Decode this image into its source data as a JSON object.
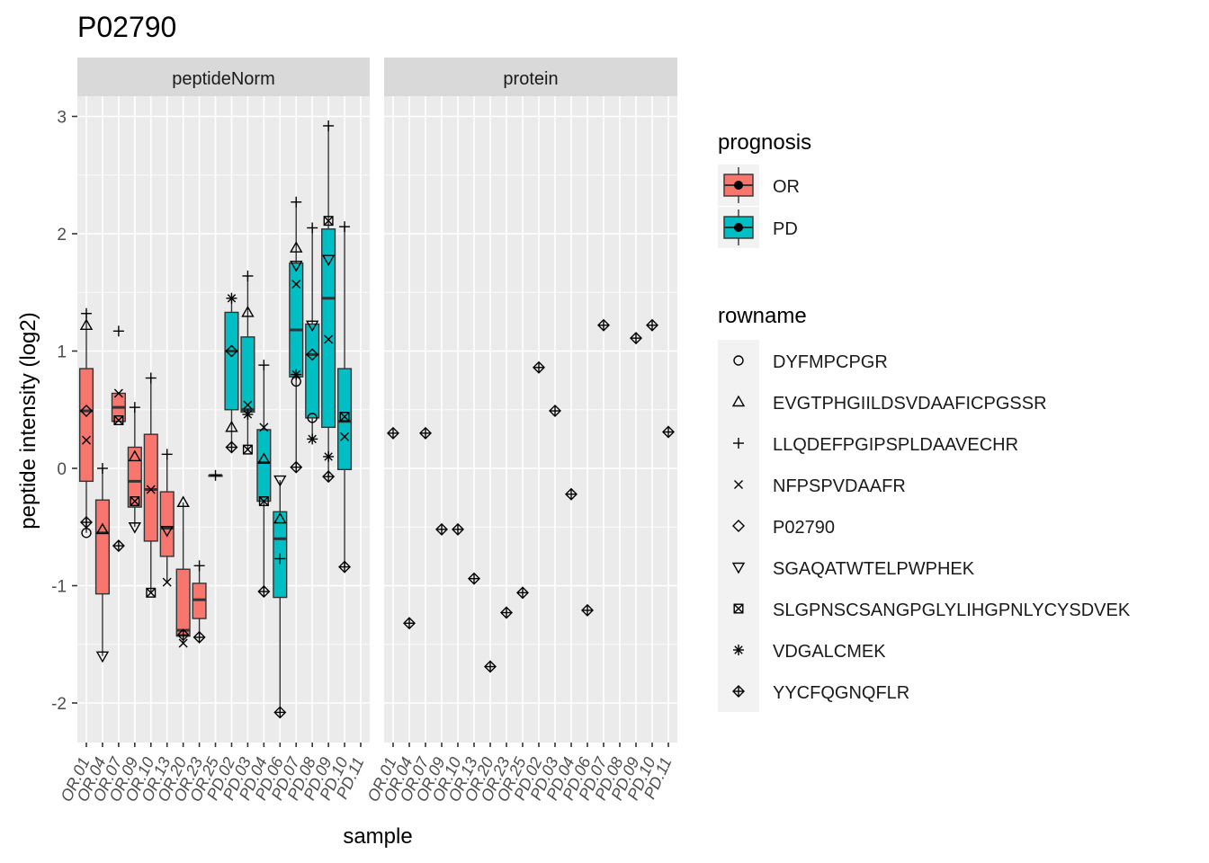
{
  "chart_data": {
    "type": "boxplot",
    "title": "P02790",
    "xlabel": "sample",
    "ylabel": "peptide intensity (log2)",
    "ylim": [
      -2.3,
      3.3
    ],
    "y_ticks": [
      -2,
      -1,
      0,
      1,
      2,
      3
    ],
    "y_tick_labels": [
      "-2",
      "-1",
      "0",
      "1",
      "2",
      "3"
    ],
    "grid": true,
    "samples": [
      "OR.01",
      "OR.04",
      "OR.07",
      "OR.09",
      "OR.10",
      "OR.13",
      "OR.20",
      "OR.23",
      "OR.25",
      "PD.02",
      "PD.03",
      "PD.04",
      "PD.06",
      "PD.07",
      "PD.08",
      "PD.09",
      "PD.10",
      "PD.11"
    ],
    "sample_group": [
      "OR",
      "OR",
      "OR",
      "OR",
      "OR",
      "OR",
      "OR",
      "OR",
      "OR",
      "PD",
      "PD",
      "PD",
      "PD",
      "PD",
      "PD",
      "PD",
      "PD",
      "PD"
    ],
    "panels": [
      {
        "name": "peptideNorm",
        "boxes": [
          {
            "sample": "OR.01",
            "q1": -0.11,
            "median": 0.49,
            "q3": 0.85,
            "whisker_low": -0.55,
            "whisker_high": 1.32
          },
          {
            "sample": "OR.04",
            "q1": -1.07,
            "median": -0.55,
            "q3": -0.27,
            "whisker_low": -1.6,
            "whisker_high": 0.0
          },
          {
            "sample": "OR.07",
            "q1": 0.4,
            "median": 0.52,
            "q3": 0.64,
            "whisker_low": 0.4,
            "whisker_high": 0.64
          },
          {
            "sample": "OR.09",
            "q1": -0.33,
            "median": -0.11,
            "q3": 0.18,
            "whisker_low": -0.5,
            "whisker_high": 0.52
          },
          {
            "sample": "OR.10",
            "q1": -0.62,
            "median": -0.18,
            "q3": 0.29,
            "whisker_low": -1.06,
            "whisker_high": 0.77
          },
          {
            "sample": "OR.13",
            "q1": -0.75,
            "median": -0.51,
            "q3": -0.2,
            "whisker_low": -0.97,
            "whisker_high": 0.12
          },
          {
            "sample": "OR.20",
            "q1": -1.43,
            "median": -1.38,
            "q3": -0.86,
            "whisker_low": -1.49,
            "whisker_high": -0.29
          },
          {
            "sample": "OR.23",
            "q1": -1.28,
            "median": -1.12,
            "q3": -0.98,
            "whisker_low": -1.44,
            "whisker_high": -0.83
          },
          {
            "sample": "OR.25",
            "q1": -0.06,
            "median": -0.06,
            "q3": -0.06,
            "whisker_low": -0.06,
            "whisker_high": -0.06
          },
          {
            "sample": "PD.02",
            "q1": 0.5,
            "median": 1.0,
            "q3": 1.33,
            "whisker_low": 0.18,
            "whisker_high": 1.45
          },
          {
            "sample": "PD.03",
            "q1": 0.48,
            "median": 0.5,
            "q3": 1.12,
            "whisker_low": 0.16,
            "whisker_high": 1.64
          },
          {
            "sample": "PD.04",
            "q1": -0.28,
            "median": 0.05,
            "q3": 0.33,
            "whisker_low": -1.05,
            "whisker_high": 0.88
          },
          {
            "sample": "PD.06",
            "q1": -1.1,
            "median": -0.6,
            "q3": -0.37,
            "whisker_low": -2.08,
            "whisker_high": -0.1
          },
          {
            "sample": "PD.07",
            "q1": 0.78,
            "median": 1.18,
            "q3": 1.75,
            "whisker_low": 0.01,
            "whisker_high": 2.27
          },
          {
            "sample": "PD.08",
            "q1": 0.43,
            "median": 0.97,
            "q3": 1.23,
            "whisker_low": 0.25,
            "whisker_high": 2.05
          },
          {
            "sample": "PD.09",
            "q1": 0.35,
            "median": 1.45,
            "q3": 2.04,
            "whisker_low": -0.07,
            "whisker_high": 2.92
          },
          {
            "sample": "PD.10",
            "q1": -0.01,
            "median": 0.4,
            "q3": 0.85,
            "whisker_low": -0.84,
            "whisker_high": 2.06
          }
        ],
        "points": [
          {
            "sample": "OR.01",
            "peptide": "DYFMPCPGR",
            "y": -0.55
          },
          {
            "sample": "OR.01",
            "peptide": "EVGTPHGIILDSVDAAFICPGSSR",
            "y": 1.22
          },
          {
            "sample": "OR.01",
            "peptide": "LLQDEFPGIPSPLDAAVECHR",
            "y": 1.32
          },
          {
            "sample": "OR.01",
            "peptide": "NFPSPVDAAFR",
            "y": 0.24
          },
          {
            "sample": "OR.01",
            "peptide": "P02790",
            "y": 0.49
          },
          {
            "sample": "OR.01",
            "peptide": "YYCFQGNQFLR",
            "y": -0.46
          },
          {
            "sample": "OR.04",
            "peptide": "EVGTPHGIILDSVDAAFICPGSSR",
            "y": -0.52
          },
          {
            "sample": "OR.04",
            "peptide": "LLQDEFPGIPSPLDAAVECHR",
            "y": 0.0
          },
          {
            "sample": "OR.04",
            "peptide": "SGAQATWTELPWPHEK",
            "y": -1.6
          },
          {
            "sample": "OR.07",
            "peptide": "LLQDEFPGIPSPLDAAVECHR",
            "y": 1.17
          },
          {
            "sample": "OR.07",
            "peptide": "NFPSPVDAAFR",
            "y": 0.64
          },
          {
            "sample": "OR.07",
            "peptide": "SLGPNSCSANGPGLYLIHGPNLYCYSDVEK",
            "y": 0.41
          },
          {
            "sample": "OR.07",
            "peptide": "YYCFQGNQFLR",
            "y": -0.66
          },
          {
            "sample": "OR.09",
            "peptide": "EVGTPHGIILDSVDAAFICPGSSR",
            "y": 0.1
          },
          {
            "sample": "OR.09",
            "peptide": "LLQDEFPGIPSPLDAAVECHR",
            "y": 0.52
          },
          {
            "sample": "OR.09",
            "peptide": "SGAQATWTELPWPHEK",
            "y": -0.5
          },
          {
            "sample": "OR.09",
            "peptide": "SLGPNSCSANGPGLYLIHGPNLYCYSDVEK",
            "y": -0.28
          },
          {
            "sample": "OR.10",
            "peptide": "LLQDEFPGIPSPLDAAVECHR",
            "y": 0.77
          },
          {
            "sample": "OR.10",
            "peptide": "NFPSPVDAAFR",
            "y": -0.18
          },
          {
            "sample": "OR.10",
            "peptide": "SLGPNSCSANGPGLYLIHGPNLYCYSDVEK",
            "y": -1.06
          },
          {
            "sample": "OR.13",
            "peptide": "LLQDEFPGIPSPLDAAVECHR",
            "y": 0.12
          },
          {
            "sample": "OR.13",
            "peptide": "NFPSPVDAAFR",
            "y": -0.97
          },
          {
            "sample": "OR.13",
            "peptide": "SGAQATWTELPWPHEK",
            "y": -0.53
          },
          {
            "sample": "OR.20",
            "peptide": "EVGTPHGIILDSVDAAFICPGSSR",
            "y": -0.29
          },
          {
            "sample": "OR.20",
            "peptide": "NFPSPVDAAFR",
            "y": -1.49
          },
          {
            "sample": "OR.20",
            "peptide": "YYCFQGNQFLR",
            "y": -1.42
          },
          {
            "sample": "OR.23",
            "peptide": "LLQDEFPGIPSPLDAAVECHR",
            "y": -0.83
          },
          {
            "sample": "OR.23",
            "peptide": "YYCFQGNQFLR",
            "y": -1.44
          },
          {
            "sample": "OR.25",
            "peptide": "LLQDEFPGIPSPLDAAVECHR",
            "y": -0.06
          },
          {
            "sample": "PD.02",
            "peptide": "EVGTPHGIILDSVDAAFICPGSSR",
            "y": 0.35
          },
          {
            "sample": "PD.02",
            "peptide": "VDGALCMEK",
            "y": 1.45
          },
          {
            "sample": "PD.02",
            "peptide": "P02790",
            "y": 1.0
          },
          {
            "sample": "PD.02",
            "peptide": "YYCFQGNQFLR",
            "y": 0.18
          },
          {
            "sample": "PD.03",
            "peptide": "EVGTPHGIILDSVDAAFICPGSSR",
            "y": 1.33
          },
          {
            "sample": "PD.03",
            "peptide": "LLQDEFPGIPSPLDAAVECHR",
            "y": 1.64
          },
          {
            "sample": "PD.03",
            "peptide": "NFPSPVDAAFR",
            "y": 0.54
          },
          {
            "sample": "PD.03",
            "peptide": "VDGALCMEK",
            "y": 0.46
          },
          {
            "sample": "PD.03",
            "peptide": "SLGPNSCSANGPGLYLIHGPNLYCYSDVEK",
            "y": 0.16
          },
          {
            "sample": "PD.04",
            "peptide": "LLQDEFPGIPSPLDAAVECHR",
            "y": 0.88
          },
          {
            "sample": "PD.04",
            "peptide": "NFPSPVDAAFR",
            "y": 0.35
          },
          {
            "sample": "PD.04",
            "peptide": "EVGTPHGIILDSVDAAFICPGSSR",
            "y": 0.08
          },
          {
            "sample": "PD.04",
            "peptide": "SLGPNSCSANGPGLYLIHGPNLYCYSDVEK",
            "y": -0.28
          },
          {
            "sample": "PD.04",
            "peptide": "YYCFQGNQFLR",
            "y": -1.05
          },
          {
            "sample": "PD.06",
            "peptide": "SGAQATWTELPWPHEK",
            "y": -0.1
          },
          {
            "sample": "PD.06",
            "peptide": "EVGTPHGIILDSVDAAFICPGSSR",
            "y": -0.43
          },
          {
            "sample": "PD.06",
            "peptide": "LLQDEFPGIPSPLDAAVECHR",
            "y": -0.77
          },
          {
            "sample": "PD.06",
            "peptide": "YYCFQGNQFLR",
            "y": -2.08
          },
          {
            "sample": "PD.07",
            "peptide": "LLQDEFPGIPSPLDAAVECHR",
            "y": 2.27
          },
          {
            "sample": "PD.07",
            "peptide": "EVGTPHGIILDSVDAAFICPGSSR",
            "y": 1.88
          },
          {
            "sample": "PD.07",
            "peptide": "SGAQATWTELPWPHEK",
            "y": 1.73
          },
          {
            "sample": "PD.07",
            "peptide": "NFPSPVDAAFR",
            "y": 1.57
          },
          {
            "sample": "PD.07",
            "peptide": "VDGALCMEK",
            "y": 0.8
          },
          {
            "sample": "PD.07",
            "peptide": "DYFMPCPGR",
            "y": 0.74
          },
          {
            "sample": "PD.07",
            "peptide": "YYCFQGNQFLR",
            "y": 0.01
          },
          {
            "sample": "PD.08",
            "peptide": "LLQDEFPGIPSPLDAAVECHR",
            "y": 2.05
          },
          {
            "sample": "PD.08",
            "peptide": "SGAQATWTELPWPHEK",
            "y": 1.22
          },
          {
            "sample": "PD.08",
            "peptide": "P02790",
            "y": 0.97
          },
          {
            "sample": "PD.08",
            "peptide": "DYFMPCPGR",
            "y": 0.43
          },
          {
            "sample": "PD.08",
            "peptide": "VDGALCMEK",
            "y": 0.25
          },
          {
            "sample": "PD.09",
            "peptide": "LLQDEFPGIPSPLDAAVECHR",
            "y": 2.92
          },
          {
            "sample": "PD.09",
            "peptide": "SLGPNSCSANGPGLYLIHGPNLYCYSDVEK",
            "y": 2.11
          },
          {
            "sample": "PD.09",
            "peptide": "SGAQATWTELPWPHEK",
            "y": 1.78
          },
          {
            "sample": "PD.09",
            "peptide": "NFPSPVDAAFR",
            "y": 1.1
          },
          {
            "sample": "PD.09",
            "peptide": "VDGALCMEK",
            "y": 0.1
          },
          {
            "sample": "PD.09",
            "peptide": "YYCFQGNQFLR",
            "y": -0.07
          },
          {
            "sample": "PD.10",
            "peptide": "LLQDEFPGIPSPLDAAVECHR",
            "y": 2.06
          },
          {
            "sample": "PD.10",
            "peptide": "SLGPNSCSANGPGLYLIHGPNLYCYSDVEK",
            "y": 0.44
          },
          {
            "sample": "PD.10",
            "peptide": "NFPSPVDAAFR",
            "y": 0.27
          },
          {
            "sample": "PD.10",
            "peptide": "YYCFQGNQFLR",
            "y": -0.84
          }
        ]
      },
      {
        "name": "protein",
        "boxes": [],
        "points": [
          {
            "sample": "OR.01",
            "peptide": "YYCFQGNQFLR",
            "y": 0.3
          },
          {
            "sample": "OR.04",
            "peptide": "YYCFQGNQFLR",
            "y": -1.32
          },
          {
            "sample": "OR.07",
            "peptide": "YYCFQGNQFLR",
            "y": 0.3
          },
          {
            "sample": "OR.09",
            "peptide": "YYCFQGNQFLR",
            "y": -0.52
          },
          {
            "sample": "OR.10",
            "peptide": "YYCFQGNQFLR",
            "y": -0.52
          },
          {
            "sample": "OR.13",
            "peptide": "YYCFQGNQFLR",
            "y": -0.94
          },
          {
            "sample": "OR.20",
            "peptide": "YYCFQGNQFLR",
            "y": -1.69
          },
          {
            "sample": "OR.23",
            "peptide": "YYCFQGNQFLR",
            "y": -1.23
          },
          {
            "sample": "OR.25",
            "peptide": "YYCFQGNQFLR",
            "y": -1.06
          },
          {
            "sample": "PD.02",
            "peptide": "YYCFQGNQFLR",
            "y": 0.86
          },
          {
            "sample": "PD.03",
            "peptide": "YYCFQGNQFLR",
            "y": 0.49
          },
          {
            "sample": "PD.04",
            "peptide": "YYCFQGNQFLR",
            "y": -0.22
          },
          {
            "sample": "PD.06",
            "peptide": "YYCFQGNQFLR",
            "y": -1.21
          },
          {
            "sample": "PD.07",
            "peptide": "YYCFQGNQFLR",
            "y": 1.22
          },
          {
            "sample": "PD.09",
            "peptide": "YYCFQGNQFLR",
            "y": 1.11
          },
          {
            "sample": "PD.10",
            "peptide": "YYCFQGNQFLR",
            "y": 1.22
          },
          {
            "sample": "PD.11",
            "peptide": "YYCFQGNQFLR",
            "y": 0.31
          }
        ]
      }
    ],
    "legend_fill": {
      "title": "prognosis",
      "placement": "right",
      "items": [
        {
          "label": "OR",
          "color": "#F8766D"
        },
        {
          "label": "PD",
          "color": "#00BFC4"
        }
      ]
    },
    "legend_shape": {
      "title": "rowname",
      "placement": "right",
      "items": [
        {
          "label": "DYFMPCPGR",
          "shape": "circle-open"
        },
        {
          "label": "EVGTPHGIILDSVDAAFICPGSSR",
          "shape": "triangle-open"
        },
        {
          "label": "LLQDEFPGIPSPLDAAVECHR",
          "shape": "plus"
        },
        {
          "label": "NFPSPVDAAFR",
          "shape": "cross"
        },
        {
          "label": "P02790",
          "shape": "diamond-open"
        },
        {
          "label": "SGAQATWTELPWPHEK",
          "shape": "triangle-down-open"
        },
        {
          "label": "SLGPNSCSANGPGLYLIHGPNLYCYSDVEK",
          "shape": "square-cross"
        },
        {
          "label": "VDGALCMEK",
          "shape": "asterisk"
        },
        {
          "label": "YYCFQGNQFLR",
          "shape": "diamond-plus"
        }
      ]
    },
    "colors": {
      "panel_bg": "#EBEBEB",
      "strip_bg": "#D9D9D9",
      "grid": "#FFFFFF",
      "text": "#1A1A1A",
      "tick_text": "#4D4D4D"
    }
  }
}
